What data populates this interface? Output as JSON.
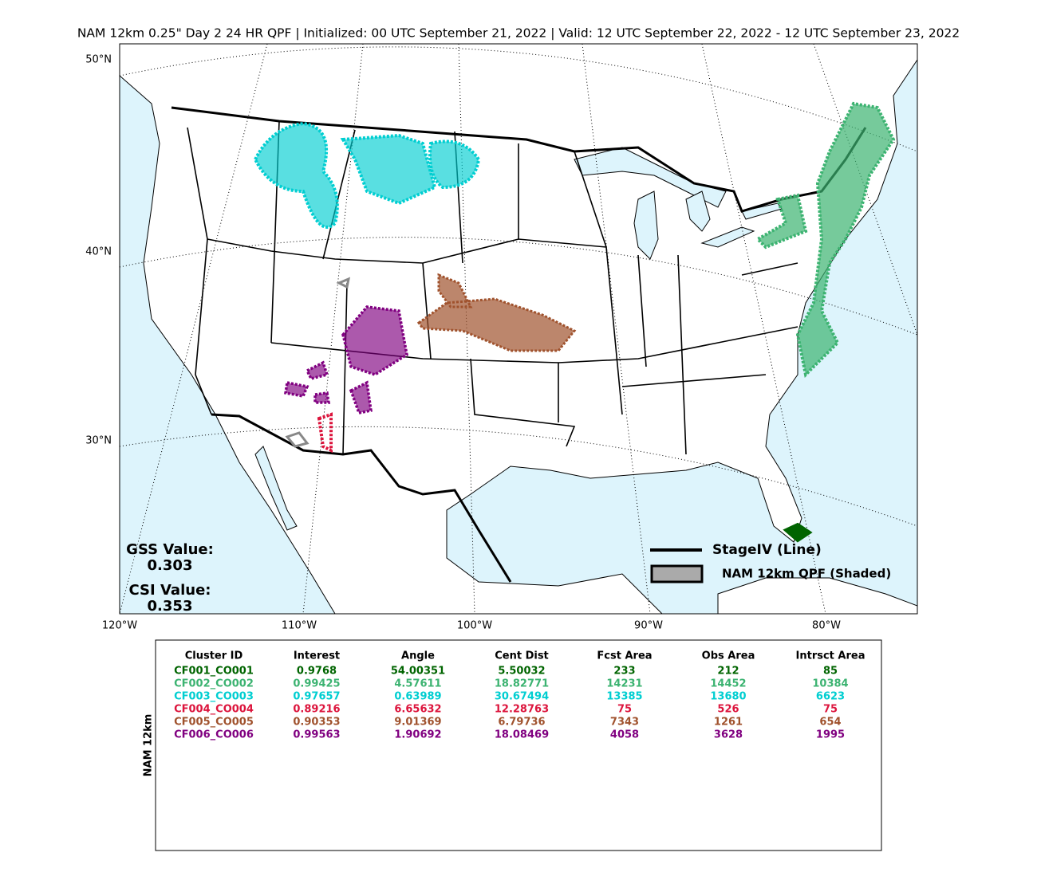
{
  "title": "NAM 12km 0.25\" Day 2 24 HR QPF | Initialized: 00 UTC September 21, 2022 | Valid: 12 UTC September 22, 2022 - 12 UTC September 23, 2022",
  "map": {
    "lat_labels": [
      "50°N",
      "40°N",
      "30°N"
    ],
    "lon_labels": [
      "120°W",
      "110°W",
      "100°W",
      "90°W",
      "80°W"
    ],
    "scores": [
      {
        "label": "GSS Value:",
        "value": "0.303"
      },
      {
        "label": "CSI Value:",
        "value": "0.353"
      }
    ],
    "legend": [
      "StageIV (Line)",
      "NAM 12km QPF (Shaded)"
    ]
  },
  "table": {
    "side_label": "NAM 12km",
    "columns": [
      "Cluster ID",
      "Interest",
      "Angle",
      "Cent Dist",
      "Fcst Area",
      "Obs Area",
      "Intrsct Area"
    ],
    "rows": [
      {
        "color": "#006400",
        "cells": [
          "CF001_CO001",
          0.9768,
          54.00351,
          5.50032,
          233,
          212,
          85
        ]
      },
      {
        "color": "#3cb371",
        "cells": [
          "CF002_CO002",
          0.99425,
          4.57611,
          18.82771,
          14231,
          14452,
          10384
        ]
      },
      {
        "color": "#00ced1",
        "cells": [
          "CF003_CO003",
          0.97657,
          0.63989,
          30.67494,
          13385,
          13680,
          6623
        ]
      },
      {
        "color": "#dc143c",
        "cells": [
          "CF004_CO004",
          0.89216,
          6.65632,
          12.28763,
          75,
          526,
          75
        ]
      },
      {
        "color": "#a0522d",
        "cells": [
          "CF005_CO005",
          0.90353,
          9.01369,
          6.79736,
          7343,
          1261,
          654
        ]
      },
      {
        "color": "#800080",
        "cells": [
          "CF006_CO006",
          0.99563,
          1.90692,
          18.08469,
          4058,
          3628,
          1995
        ]
      }
    ]
  }
}
